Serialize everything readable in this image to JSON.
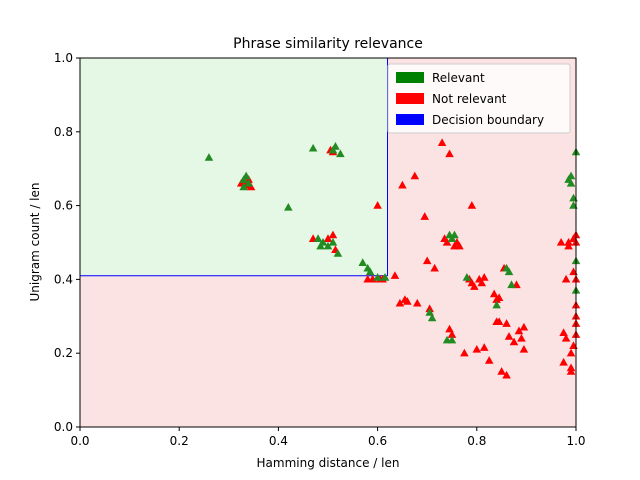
{
  "chart_data": {
    "type": "scatter",
    "title": "Phrase similarity relevance",
    "xlabel": "Hamming distance / len",
    "ylabel": "Unigram count / len",
    "xlim": [
      0,
      1
    ],
    "ylim": [
      0,
      1
    ],
    "xticks": [
      "0.0",
      "0.2",
      "0.4",
      "0.6",
      "0.8",
      "1.0"
    ],
    "yticks": [
      "0.0",
      "0.2",
      "0.4",
      "0.6",
      "0.8",
      "1.0"
    ],
    "grid": false,
    "legend_position": "top-right",
    "decision_boundary": {
      "x": 0.62,
      "y": 0.41
    },
    "region_colors": {
      "relevant": "#e5f8e5",
      "not_relevant": "#fbe3e3"
    },
    "legend": [
      {
        "label": "Relevant",
        "color": "#008000"
      },
      {
        "label": "Not relevant",
        "color": "#ff0000"
      },
      {
        "label": "Decision boundary",
        "color": "#0000ff"
      }
    ],
    "series": [
      {
        "name": "Relevant",
        "color": "#228b22",
        "marker": "triangle",
        "points": [
          [
            0.26,
            0.73
          ],
          [
            0.33,
            0.65
          ],
          [
            0.33,
            0.67
          ],
          [
            0.335,
            0.68
          ],
          [
            0.34,
            0.66
          ],
          [
            0.42,
            0.595
          ],
          [
            0.47,
            0.755
          ],
          [
            0.51,
            0.75
          ],
          [
            0.515,
            0.76
          ],
          [
            0.525,
            0.74
          ],
          [
            0.48,
            0.51
          ],
          [
            0.485,
            0.49
          ],
          [
            0.49,
            0.5
          ],
          [
            0.5,
            0.49
          ],
          [
            0.51,
            0.5
          ],
          [
            0.52,
            0.47
          ],
          [
            0.57,
            0.445
          ],
          [
            0.58,
            0.43
          ],
          [
            0.585,
            0.42
          ],
          [
            0.6,
            0.405
          ],
          [
            0.615,
            0.405
          ],
          [
            0.705,
            0.31
          ],
          [
            0.71,
            0.295
          ],
          [
            0.74,
            0.235
          ],
          [
            0.75,
            0.235
          ],
          [
            0.745,
            0.52
          ],
          [
            0.75,
            0.51
          ],
          [
            0.755,
            0.52
          ],
          [
            0.78,
            0.405
          ],
          [
            0.84,
            0.33
          ],
          [
            0.86,
            0.43
          ],
          [
            0.865,
            0.42
          ],
          [
            0.87,
            0.385
          ],
          [
            0.985,
            0.67
          ],
          [
            0.99,
            0.68
          ],
          [
            0.99,
            0.66
          ],
          [
            0.995,
            0.6
          ],
          [
            0.995,
            0.62
          ],
          [
            1.0,
            0.745
          ],
          [
            1.0,
            0.45
          ],
          [
            1.0,
            0.37
          ]
        ]
      },
      {
        "name": "Not relevant",
        "color": "#ff0000",
        "marker": "triangle",
        "points": [
          [
            0.325,
            0.66
          ],
          [
            0.33,
            0.665
          ],
          [
            0.335,
            0.655
          ],
          [
            0.34,
            0.67
          ],
          [
            0.345,
            0.65
          ],
          [
            0.47,
            0.51
          ],
          [
            0.5,
            0.51
          ],
          [
            0.505,
            0.75
          ],
          [
            0.51,
            0.745
          ],
          [
            0.51,
            0.52
          ],
          [
            0.515,
            0.48
          ],
          [
            0.58,
            0.4
          ],
          [
            0.59,
            0.4
          ],
          [
            0.6,
            0.6
          ],
          [
            0.605,
            0.4
          ],
          [
            0.61,
            0.4
          ],
          [
            0.635,
            0.41
          ],
          [
            0.645,
            0.335
          ],
          [
            0.65,
            0.655
          ],
          [
            0.655,
            0.345
          ],
          [
            0.66,
            0.34
          ],
          [
            0.675,
            0.68
          ],
          [
            0.68,
            0.335
          ],
          [
            0.695,
            0.57
          ],
          [
            0.7,
            0.45
          ],
          [
            0.705,
            0.32
          ],
          [
            0.715,
            0.43
          ],
          [
            0.73,
            0.77
          ],
          [
            0.735,
            0.51
          ],
          [
            0.74,
            0.5
          ],
          [
            0.745,
            0.74
          ],
          [
            0.745,
            0.265
          ],
          [
            0.75,
            0.25
          ],
          [
            0.755,
            0.49
          ],
          [
            0.76,
            0.5
          ],
          [
            0.765,
            0.49
          ],
          [
            0.775,
            0.2
          ],
          [
            0.785,
            0.4
          ],
          [
            0.79,
            0.39
          ],
          [
            0.79,
            0.6
          ],
          [
            0.795,
            0.38
          ],
          [
            0.8,
            0.21
          ],
          [
            0.805,
            0.4
          ],
          [
            0.81,
            0.39
          ],
          [
            0.815,
            0.405
          ],
          [
            0.815,
            0.215
          ],
          [
            0.825,
            0.18
          ],
          [
            0.835,
            0.36
          ],
          [
            0.84,
            0.345
          ],
          [
            0.84,
            0.285
          ],
          [
            0.845,
            0.285
          ],
          [
            0.845,
            0.35
          ],
          [
            0.85,
            0.15
          ],
          [
            0.855,
            0.43
          ],
          [
            0.86,
            0.28
          ],
          [
            0.86,
            0.14
          ],
          [
            0.865,
            0.245
          ],
          [
            0.875,
            0.23
          ],
          [
            0.88,
            0.385
          ],
          [
            0.885,
            0.26
          ],
          [
            0.89,
            0.24
          ],
          [
            0.895,
            0.21
          ],
          [
            0.895,
            0.27
          ],
          [
            0.97,
            0.5
          ],
          [
            0.975,
            0.255
          ],
          [
            0.975,
            0.175
          ],
          [
            0.98,
            0.4
          ],
          [
            0.98,
            0.24
          ],
          [
            0.985,
            0.5
          ],
          [
            0.985,
            0.49
          ],
          [
            0.99,
            0.2
          ],
          [
            0.99,
            0.16
          ],
          [
            0.99,
            0.15
          ],
          [
            0.995,
            0.22
          ],
          [
            0.995,
            0.42
          ],
          [
            0.995,
            0.51
          ],
          [
            1.0,
            0.3
          ],
          [
            1.0,
            0.33
          ],
          [
            1.0,
            0.28
          ],
          [
            1.0,
            0.25
          ],
          [
            1.0,
            0.4
          ],
          [
            1.0,
            0.5
          ],
          [
            1.0,
            0.52
          ]
        ]
      }
    ]
  }
}
